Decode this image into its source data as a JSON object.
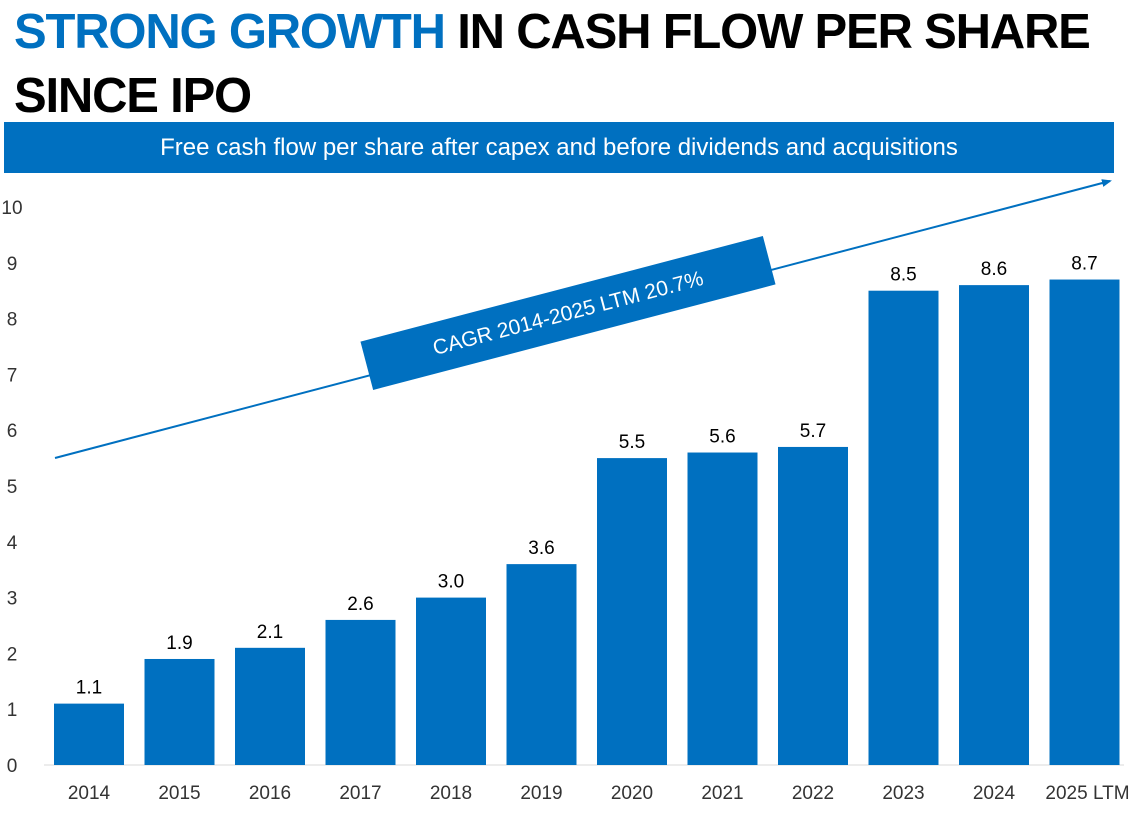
{
  "title": {
    "highlight": "STRONG GROWTH",
    "rest": " IN CASH FLOW PER SHARE SINCE IPO"
  },
  "banner": "Free cash flow per share after capex and before dividends and acquisitions",
  "colors": {
    "accent": "#0070c0",
    "axis_text": "#333333",
    "label_text": "#000000"
  },
  "chart_data": {
    "type": "bar",
    "categories": [
      "2014",
      "2015",
      "2016",
      "2017",
      "2018",
      "2019",
      "2020",
      "2021",
      "2022",
      "2023",
      "2024",
      "2025 LTM"
    ],
    "values": [
      1.1,
      1.9,
      2.1,
      2.6,
      3.0,
      3.6,
      5.5,
      5.6,
      5.7,
      8.5,
      8.6,
      8.7
    ],
    "value_labels": [
      "1.1",
      "1.9",
      "2.1",
      "2.6",
      "3.0",
      "3.6",
      "5.5",
      "5.6",
      "5.7",
      "8.5",
      "8.6",
      "8.7"
    ],
    "ylim": [
      0,
      10
    ],
    "yticks": [
      "0",
      "1",
      "2",
      "3",
      "4",
      "5",
      "6",
      "7",
      "8",
      "9",
      "10"
    ],
    "grid": false,
    "annotation": "CAGR 2014-2025 LTM 20.7%"
  }
}
